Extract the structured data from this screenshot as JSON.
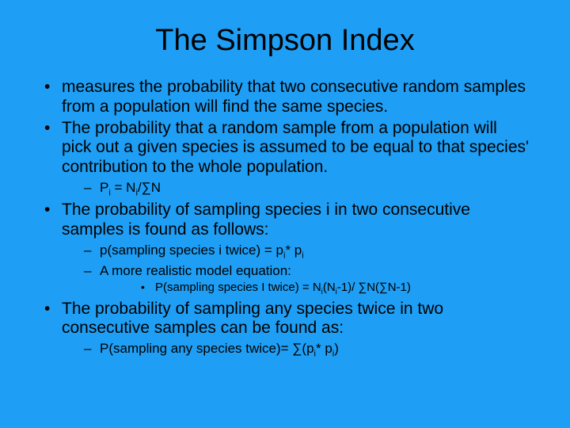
{
  "colors": {
    "background": "#1e9ef4",
    "text": "#000000"
  },
  "title": "The Simpson Index",
  "bullets": {
    "b1": "measures the probability that two consecutive random samples from a population will find the same species.",
    "b2": "The probability that a random sample from a population will pick out a given species is assumed to be equal to that species' contribution to the whole population.",
    "b2s1_pre": "P",
    "b2s1_sub1": "i",
    "b2s1_mid1": " = N",
    "b2s1_sub2": "i",
    "b2s1_post": "/∑N",
    "b3": "The probability of sampling species i in two consecutive samples is found as follows:",
    "b3s1_pre": "p(sampling species i twice) = p",
    "b3s1_sub1": "i",
    "b3s1_mid": "* p",
    "b3s1_sub2": "i",
    "b3s2": "A more realistic model equation:",
    "b3s2s1_pre": "P(sampling species I twice) = N",
    "b3s2s1_sub1": "i",
    "b3s2s1_mid1": "(N",
    "b3s2s1_sub2": "i",
    "b3s2s1_mid2": "-1)/ ∑N(∑N-1)",
    "b4": "The probability of sampling any species twice in two consecutive samples can be found as:",
    "b4s1_pre": "P(sampling any species twice)= ∑(p",
    "b4s1_sub1": "i",
    "b4s1_mid": "* p",
    "b4s1_sub2": "i",
    "b4s1_post": ")"
  }
}
